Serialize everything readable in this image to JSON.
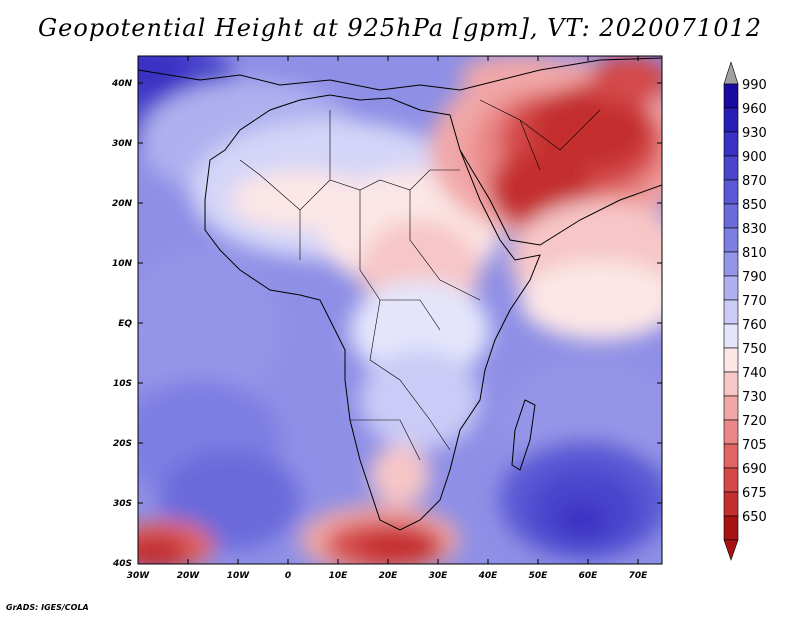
{
  "title": "Geopotential Height at 925hPa [gpm], VT: 2020071012",
  "credit": "GrADS: IGES/COLA",
  "map": {
    "lat_labels": [
      "40N",
      "30N",
      "20N",
      "10N",
      "EQ",
      "10S",
      "20S",
      "30S",
      "40S"
    ],
    "lon_labels": [
      "30W",
      "20W",
      "10W",
      "0",
      "10E",
      "20E",
      "30E",
      "40E",
      "50E",
      "60E",
      "70E"
    ]
  },
  "colorbar": {
    "levels": [
      "990",
      "960",
      "930",
      "900",
      "870",
      "850",
      "830",
      "810",
      "790",
      "770",
      "760",
      "750",
      "740",
      "730",
      "720",
      "705",
      "690",
      "675",
      "650"
    ],
    "colors": [
      "#1a0aa0",
      "#2a1fb4",
      "#3a32c4",
      "#4a45cc",
      "#5a58d4",
      "#6b6bdc",
      "#7d7ee2",
      "#9495e8",
      "#afb0ef",
      "#cacbf6",
      "#e4e5fb",
      "#fce6e6",
      "#f7c6c6",
      "#f1a7a7",
      "#ea8787",
      "#e06565",
      "#d44848",
      "#c42f2f",
      "#a81414"
    ],
    "top_arrow_color": "#a0a0a0",
    "bottom_arrow_color": "#a81414"
  }
}
